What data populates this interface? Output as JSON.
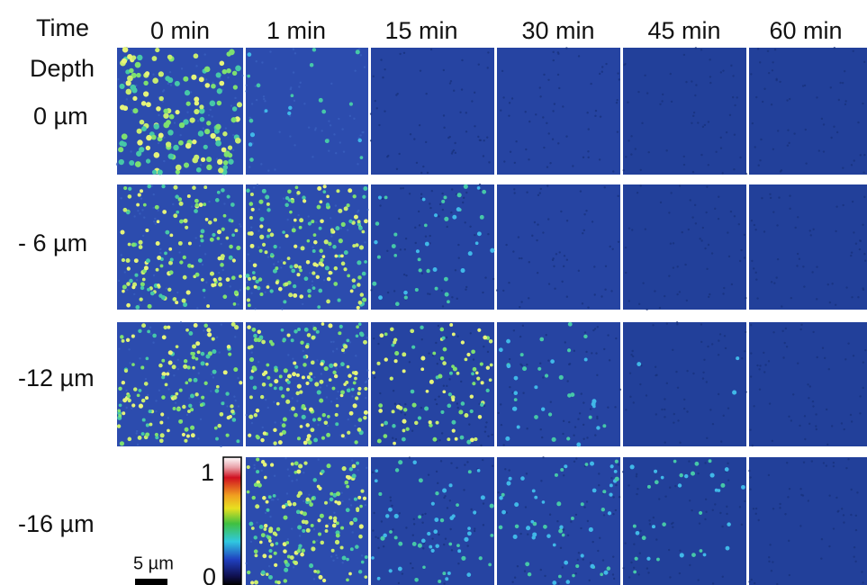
{
  "header": {
    "time": "Time",
    "depth": "Depth"
  },
  "columns": [
    "0 min",
    "1 min",
    "15 min",
    "30 min",
    "45 min",
    "60 min"
  ],
  "rows": [
    "0 µm",
    "- 6 µm",
    "-12 µm",
    "-16 µm"
  ],
  "colorbar": {
    "max": "1",
    "min": "0"
  },
  "scale_bar": "5 µm"
}
